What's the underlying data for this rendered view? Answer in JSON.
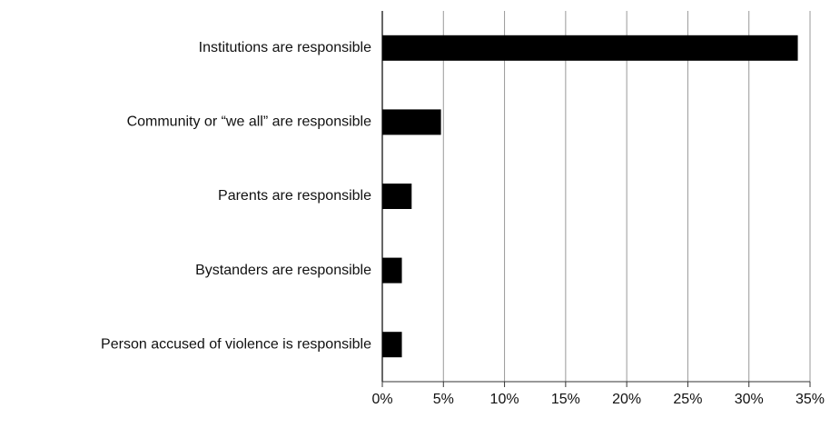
{
  "chart_data": {
    "type": "hbar",
    "categories": [
      "Institutions are responsible",
      "Community or “we all” are responsible",
      "Parents are responsible",
      "Bystanders are responsible",
      "Person accused of violence is responsible"
    ],
    "values": [
      34,
      4.8,
      2.4,
      1.6,
      1.6
    ],
    "color": "#000000",
    "xlim": [
      0,
      35
    ],
    "xticks": [
      {
        "value": 0,
        "label": "0%"
      },
      {
        "value": 5,
        "label": "5%"
      },
      {
        "value": 10,
        "label": "10%"
      },
      {
        "value": 15,
        "label": "15%"
      },
      {
        "value": 20,
        "label": "20%"
      },
      {
        "value": 25,
        "label": "25%"
      },
      {
        "value": 30,
        "label": "30%"
      },
      {
        "value": 35,
        "label": "35%"
      }
    ],
    "grid": true
  }
}
